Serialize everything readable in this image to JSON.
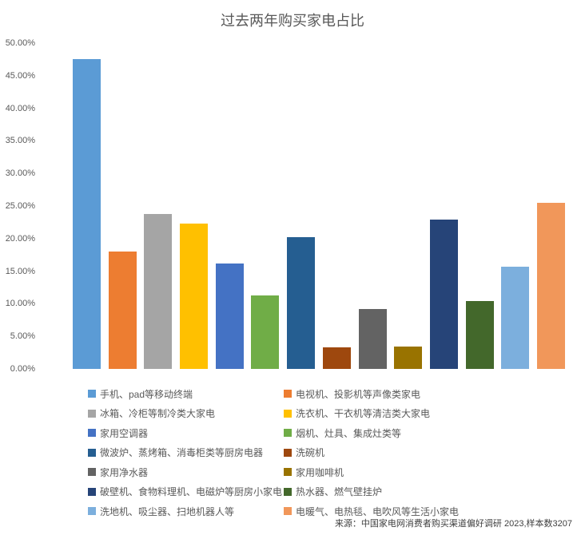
{
  "chart_data": {
    "type": "bar",
    "title": "过去两年购买家电占比",
    "xlabel": "",
    "ylabel": "",
    "ylim": [
      0,
      50
    ],
    "grid": false,
    "legend_position": "bottom-two-columns",
    "yticks": [
      {
        "value": 50,
        "label": "50.00%"
      },
      {
        "value": 45,
        "label": "45.00%"
      },
      {
        "value": 40,
        "label": "40.00%"
      },
      {
        "value": 35,
        "label": "35.00%"
      },
      {
        "value": 30,
        "label": "30.00%"
      },
      {
        "value": 25,
        "label": "25.00%"
      },
      {
        "value": 20,
        "label": "20.00%"
      },
      {
        "value": 15,
        "label": "15.00%"
      },
      {
        "value": 10,
        "label": "10.00%"
      },
      {
        "value": 5,
        "label": "5.00%"
      },
      {
        "value": 0,
        "label": "0.00%"
      }
    ],
    "series": [
      {
        "name": "手机、pad等移动终端",
        "value": 47.5,
        "color": "#5B9BD5"
      },
      {
        "name": "电视机、投影机等声像类家电",
        "value": 18.0,
        "color": "#ED7D31"
      },
      {
        "name": "冰箱、冷柜等制冷类大家电",
        "value": 23.8,
        "color": "#A5A5A5"
      },
      {
        "name": "洗衣机、干衣机等清洁类大家电",
        "value": 22.3,
        "color": "#FFC000"
      },
      {
        "name": "家用空调器",
        "value": 16.2,
        "color": "#4472C4"
      },
      {
        "name": "烟机、灶具、集成灶类等",
        "value": 11.3,
        "color": "#70AD47"
      },
      {
        "name": "微波炉、蒸烤箱、消毒柜类等厨房电器",
        "value": 20.2,
        "color": "#255E91"
      },
      {
        "name": "洗碗机",
        "value": 3.3,
        "color": "#9E480E"
      },
      {
        "name": "家用净水器",
        "value": 9.2,
        "color": "#636363"
      },
      {
        "name": "家用咖啡机",
        "value": 3.4,
        "color": "#997300"
      },
      {
        "name": "破壁机、食物料理机、电磁炉等厨房小家电",
        "value": 22.9,
        "color": "#264478"
      },
      {
        "name": "热水器、燃气壁挂炉",
        "value": 10.4,
        "color": "#43682B"
      },
      {
        "name": "洗地机、吸尘器、扫地机器人等",
        "value": 15.7,
        "color": "#7CAFDD"
      },
      {
        "name": "电暖气、电热毯、电吹风等生活小家电",
        "value": 25.5,
        "color": "#F1975A"
      }
    ]
  },
  "source_note": "来源：中国家电网消费者购买渠道偏好调研 2023,样本数3207"
}
